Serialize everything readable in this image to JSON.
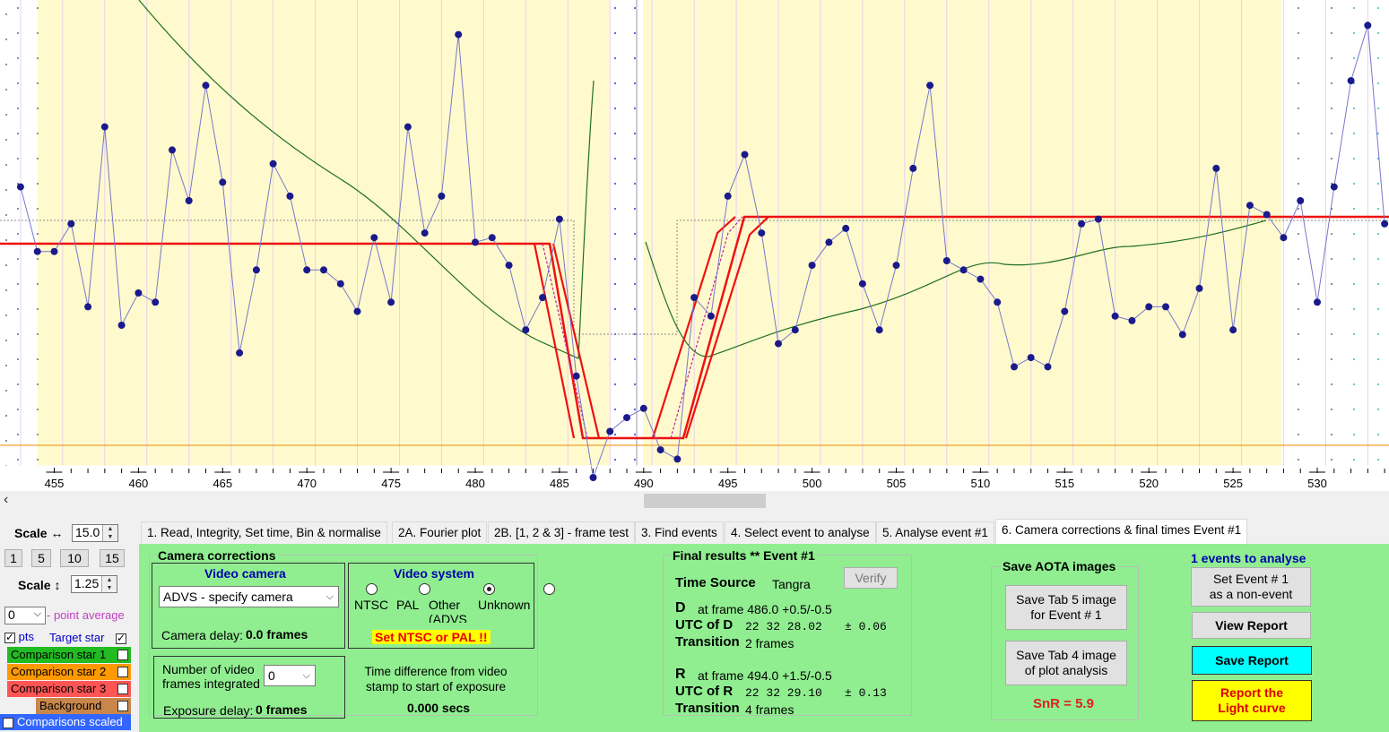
{
  "chart_data": {
    "type": "line",
    "x_ticks": [
      "455",
      "460",
      "465",
      "470",
      "475",
      "480",
      "485",
      "490",
      "495",
      "500",
      "505",
      "510",
      "515",
      "520",
      "525",
      "530"
    ],
    "xlim": [
      453,
      534
    ],
    "series": [
      {
        "x": [
          453,
          454,
          455,
          456,
          457,
          458,
          459,
          460,
          461,
          462,
          463,
          464,
          465,
          466,
          467,
          468,
          469,
          470,
          471,
          472,
          473,
          474,
          475,
          476,
          477,
          478,
          479,
          480,
          481,
          482,
          483,
          484,
          485,
          486,
          487,
          488,
          489,
          490,
          491,
          492,
          493,
          494,
          495,
          496,
          497,
          498,
          499,
          500,
          501,
          502,
          503,
          504,
          505,
          506,
          507,
          508,
          509,
          510,
          511,
          512,
          513,
          514,
          515,
          516,
          517,
          518,
          519,
          520,
          521,
          522,
          523,
          524,
          525,
          526,
          527,
          528,
          529,
          530,
          531,
          532,
          533,
          534
        ],
        "y": [
          0.63,
          0.49,
          0.49,
          0.55,
          0.37,
          0.76,
          0.33,
          0.4,
          0.38,
          0.71,
          0.6,
          0.85,
          0.64,
          0.27,
          0.45,
          0.68,
          0.61,
          0.45,
          0.45,
          0.42,
          0.36,
          0.52,
          0.38,
          0.76,
          0.53,
          0.61,
          0.96,
          0.51,
          0.52,
          0.46,
          0.32,
          0.39,
          0.56,
          0.22,
          0.0,
          0.1,
          0.13,
          0.15,
          0.06,
          0.04,
          0.39,
          0.35,
          0.61,
          0.7,
          0.53,
          0.29,
          0.32,
          0.46,
          0.51,
          0.54,
          0.42,
          0.32,
          0.46,
          0.67,
          0.85,
          0.47,
          0.45,
          0.43,
          0.38,
          0.24,
          0.26,
          0.24,
          0.36,
          0.55,
          0.56,
          0.35,
          0.34,
          0.37,
          0.37,
          0.31,
          0.41,
          0.67,
          0.32,
          0.59,
          0.57,
          0.52,
          0.6,
          0.38,
          0.63,
          0.86,
          0.98,
          0.55
        ]
      }
    ]
  },
  "left": {
    "scale_h_label": "Scale ↔",
    "scale_h_value": "15.0",
    "scale_buttons": [
      "1",
      "5",
      "10",
      "15"
    ],
    "scale_v_label": "Scale ↕",
    "scale_v_value": "1.25",
    "point_avg_value": "0",
    "point_avg_label": "- point average",
    "pts_label": "pts",
    "target_label": "Target star",
    "comp1": "Comparison star 1",
    "comp2": "Comparison star 2",
    "comp3": "Comparison star 3",
    "background": "Background",
    "scaled": "Comparisons scaled",
    "colors": {
      "comp1": "#22bb22",
      "comp2": "#ff9900",
      "comp3": "#ff5555",
      "background": "#c8864a",
      "scaled": "#3366ff"
    }
  },
  "tabs": [
    "1.  Read, Integrity, Set time, Bin & normalise",
    "2A. Fourier plot",
    "2B. [1, 2 & 3] - frame test",
    "3. Find events",
    "4. Select event to analyse",
    "5. Analyse event #1",
    "6. Camera corrections & final times Event #1"
  ],
  "camera": {
    "group_title": "Camera corrections",
    "video_camera_title": "Video camera",
    "camera_select": "ADVS - specify camera",
    "camera_delay_label": "Camera delay:",
    "camera_delay_value": "0.0 frames",
    "video_system_title": "Video system",
    "radios": [
      "NTSC",
      "PAL",
      "Other\n(ADVS",
      "Unknown"
    ],
    "warn": "Set NTSC or PAL !!",
    "frames_int_label": "Number of video frames integrated",
    "frames_int_value": "0",
    "exposure_delay_label": "Exposure delay:",
    "exposure_delay_value": "0 frames",
    "time_diff_label": "Time difference from video stamp to start of exposure",
    "time_diff_value": "0.000 secs"
  },
  "results": {
    "title": "Final results  **  Event #1",
    "time_source_label": "Time Source",
    "time_source_value": "Tangra",
    "verify": "Verify",
    "d_label": "D",
    "d_frame": "at frame 486.0  +0.5/-0.5",
    "utc_d_label": "UTC of D",
    "utc_d_value": "22 32 28.02",
    "utc_d_err": "± 0.06",
    "transition_label": "Transition",
    "d_transition": "2 frames",
    "r_label": "R",
    "r_frame": "at frame 494.0  +1.5/-0.5",
    "utc_r_label": "UTC of R",
    "utc_r_value": "22 32 29.10",
    "utc_r_err": "± 0.13",
    "r_transition": "4 frames"
  },
  "aota": {
    "title": "Save AOTA images",
    "btn5": "Save Tab 5 image\nfor Event # 1",
    "btn4": "Save Tab 4 image\nof plot analysis",
    "snr": "SnR = 5.9"
  },
  "right": {
    "events_title": "1 events to analyse",
    "nonevent": "Set Event # 1\nas a non-event",
    "view": "View Report",
    "save": "Save Report",
    "report": "Report the\nLight curve"
  }
}
